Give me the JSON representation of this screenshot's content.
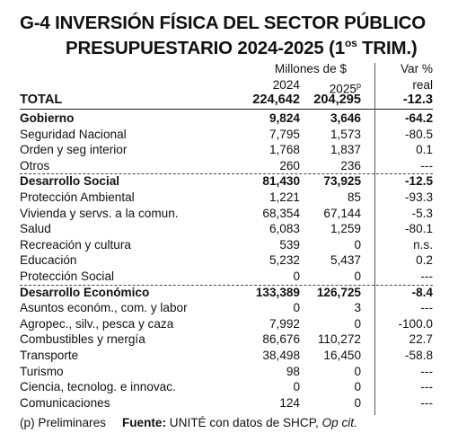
{
  "title": {
    "line1": "G-4 INVERSIÓN FÍSICA DEL SECTOR PÚBLICO",
    "line2_main": "PRESUPUESTARIO 2024-2025 (1",
    "line2_sup": "os",
    "line2_end": " TRIM.)"
  },
  "header": {
    "units": "Millones de $",
    "var_top": "Var %",
    "col_2024": "2024",
    "col_2025": "2025",
    "col_2025_sup": "p",
    "var_bottom": "real"
  },
  "total": {
    "label": "TOTAL",
    "v2024": "224,642",
    "v2025": "204,295",
    "var": "-12.3"
  },
  "rows": [
    {
      "label": "Gobierno",
      "v2024": "9,824",
      "v2025": "3,646",
      "var": "-64.2",
      "bold": true
    },
    {
      "label": "Seguridad Nacional",
      "v2024": "7,795",
      "v2025": "1,573",
      "var": "-80.5"
    },
    {
      "label": "Orden y seg interior",
      "v2024": "1,768",
      "v2025": "1,837",
      "var": "0.1"
    },
    {
      "label": "Otros",
      "v2024": "260",
      "v2025": "236",
      "var": "---"
    },
    {
      "label": "Desarrollo Social",
      "v2024": "81,430",
      "v2025": "73,925",
      "var": "-12.5",
      "bold": true
    },
    {
      "label": "Protección Ambiental",
      "v2024": "1,221",
      "v2025": "85",
      "var": "-93.3"
    },
    {
      "label": "Vivienda y servs. a la comun.",
      "v2024": "68,354",
      "v2025": "67,144",
      "var": "-5.3"
    },
    {
      "label": "Salud",
      "v2024": "6,083",
      "v2025": "1,259",
      "var": "-80.1"
    },
    {
      "label": "Recreación y cultura",
      "v2024": "539",
      "v2025": "0",
      "var": "n.s."
    },
    {
      "label": "Educación",
      "v2024": "5,232",
      "v2025": "5,437",
      "var": "0.2"
    },
    {
      "label": "Protección Social",
      "v2024": "0",
      "v2025": "0",
      "var": "---"
    },
    {
      "label": "Desarrollo Económico",
      "v2024": "133,389",
      "v2025": "126,725",
      "var": "-8.4",
      "bold": true
    },
    {
      "label": "Asuntos económ., com. y labor",
      "v2024": "0",
      "v2025": "3",
      "var": "---"
    },
    {
      "label": "Agropec., silv., pesca y caza",
      "v2024": "7,992",
      "v2025": "0",
      "var": "-100.0"
    },
    {
      "label": "Combustibles y rnergía",
      "v2024": "86,676",
      "v2025": "110,272",
      "var": "22.7"
    },
    {
      "label": "Transporte",
      "v2024": "38,498",
      "v2025": "16,450",
      "var": "-58.8"
    },
    {
      "label": "Turismo",
      "v2024": "98",
      "v2025": "0",
      "var": "---"
    },
    {
      "label": "Ciencia, tecnolog. e innovac.",
      "v2024": "0",
      "v2025": "0",
      "var": "---"
    },
    {
      "label": "Comunicaciones",
      "v2024": "124",
      "v2025": "0",
      "var": "---"
    }
  ],
  "footer": {
    "note": "(p) Preliminares",
    "source_label": "Fuente:",
    "source_text": " UNITÉ con datos de SHCP, ",
    "source_italic": "Op cit."
  }
}
